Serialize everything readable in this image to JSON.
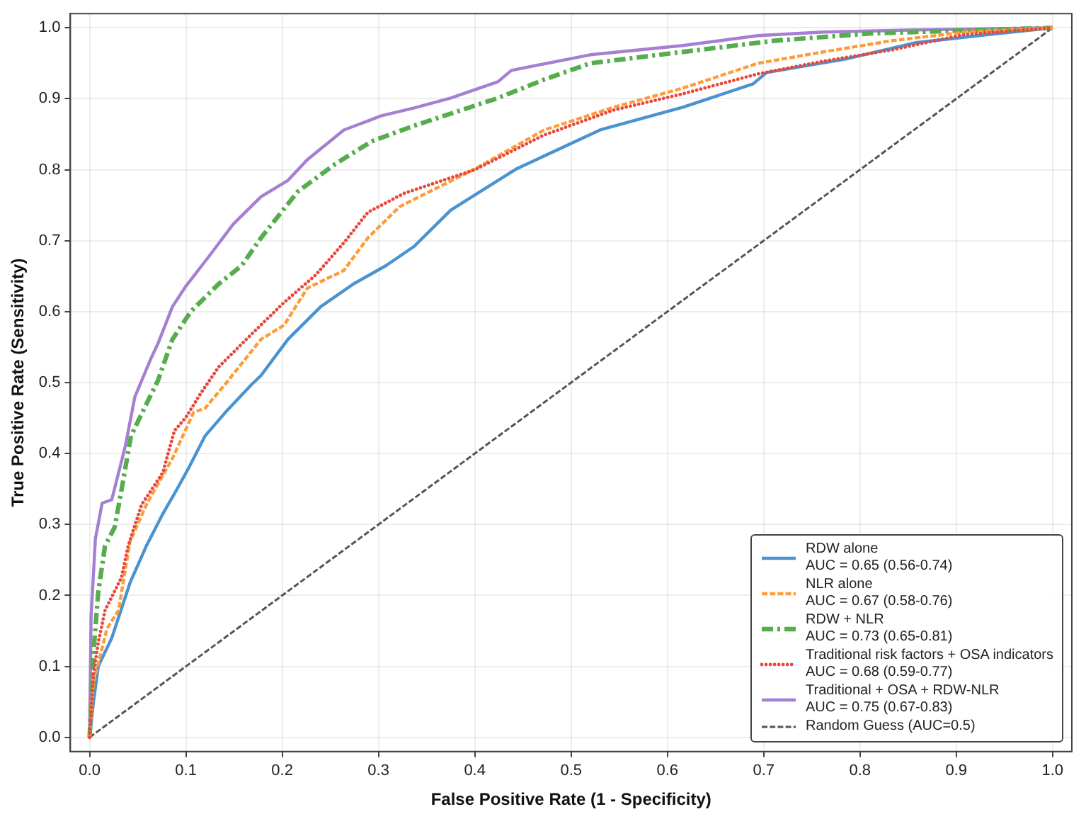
{
  "chart_data": {
    "type": "line",
    "xlabel": "False Positive Rate (1 - Specificity)",
    "ylabel": "True Positive Rate (Sensitivity)",
    "xlim": [
      -0.02,
      1.02
    ],
    "ylim": [
      -0.02,
      1.02
    ],
    "xticks": [
      {
        "value": 0,
        "label": "0.0"
      },
      {
        "value": 0.1,
        "label": "0.1"
      },
      {
        "value": 0.2,
        "label": "0.2"
      },
      {
        "value": 0.3,
        "label": "0.3"
      },
      {
        "value": 0.4,
        "label": "0.4"
      },
      {
        "value": 0.5,
        "label": "0.5"
      },
      {
        "value": 0.6,
        "label": "0.6"
      },
      {
        "value": 0.7,
        "label": "0.7"
      },
      {
        "value": 0.8,
        "label": "0.8"
      },
      {
        "value": 0.9,
        "label": "0.9"
      },
      {
        "value": 1,
        "label": "1.0"
      }
    ],
    "yticks": [
      {
        "value": 0,
        "label": "0.0"
      },
      {
        "value": 0.1,
        "label": "0.1"
      },
      {
        "value": 0.2,
        "label": "0.2"
      },
      {
        "value": 0.3,
        "label": "0.3"
      },
      {
        "value": 0.4,
        "label": "0.4"
      },
      {
        "value": 0.5,
        "label": "0.5"
      },
      {
        "value": 0.6,
        "label": "0.6"
      },
      {
        "value": 0.7,
        "label": "0.7"
      },
      {
        "value": 0.8,
        "label": "0.8"
      },
      {
        "value": 0.9,
        "label": "0.9"
      },
      {
        "value": 1,
        "label": "1.0"
      }
    ],
    "grid": true,
    "legend": "bottom right",
    "marker": "none",
    "series": [
      {
        "name": "RDW alone\nAUC = 0.65 (0.56-0.74)",
        "color": "#4a93d0",
        "line_style": "solid",
        "x": [
          0,
          0.004,
          0.009,
          0.023,
          0.042,
          0.059,
          0.076,
          0.09,
          0.103,
          0.12,
          0.141,
          0.168,
          0.178,
          0.206,
          0.24,
          0.274,
          0.308,
          0.337,
          0.375,
          0.443,
          0.53,
          0.616,
          0.689,
          0.703,
          0.785,
          0.858,
          0.93,
          1
        ],
        "values": [
          0,
          0.05,
          0.1,
          0.14,
          0.218,
          0.27,
          0.315,
          0.348,
          0.38,
          0.425,
          0.458,
          0.497,
          0.51,
          0.561,
          0.607,
          0.639,
          0.665,
          0.692,
          0.743,
          0.801,
          0.856,
          0.888,
          0.921,
          0.937,
          0.956,
          0.979,
          0.99,
          1
        ]
      },
      {
        "name": "NLR alone\nAUC = 0.67 (0.58-0.76)",
        "color": "#ff9c3a",
        "line_style": "dashed",
        "x": [
          0,
          0.004,
          0.018,
          0.03,
          0.042,
          0.059,
          0.086,
          0.108,
          0.12,
          0.144,
          0.178,
          0.202,
          0.226,
          0.264,
          0.289,
          0.322,
          0.4,
          0.472,
          0.544,
          0.616,
          0.694,
          0.762,
          0.834,
          0.91,
          1
        ],
        "values": [
          0,
          0.077,
          0.153,
          0.179,
          0.276,
          0.328,
          0.393,
          0.458,
          0.464,
          0.503,
          0.561,
          0.581,
          0.633,
          0.658,
          0.704,
          0.748,
          0.801,
          0.856,
          0.888,
          0.915,
          0.95,
          0.966,
          0.982,
          0.994,
          1
        ]
      },
      {
        "name": "RDW + NLR\nAUC = 0.73 (0.65-0.81)",
        "color": "#55ad4c",
        "line_style": "dashdot",
        "x": [
          0,
          0.004,
          0.009,
          0.016,
          0.026,
          0.033,
          0.043,
          0.059,
          0.071,
          0.086,
          0.105,
          0.134,
          0.158,
          0.178,
          0.216,
          0.255,
          0.293,
          0.337,
          0.424,
          0.472,
          0.52,
          0.616,
          0.713,
          0.81,
          1
        ],
        "values": [
          0,
          0.12,
          0.205,
          0.27,
          0.296,
          0.348,
          0.425,
          0.47,
          0.503,
          0.561,
          0.6,
          0.639,
          0.665,
          0.704,
          0.769,
          0.808,
          0.84,
          0.862,
          0.901,
          0.927,
          0.95,
          0.966,
          0.982,
          0.992,
          1
        ]
      },
      {
        "name": "Traditional risk factors + OSA indicators\nAUC = 0.68 (0.59-0.77)",
        "color": "#e8483c",
        "line_style": "dotted",
        "x": [
          0,
          0.004,
          0.009,
          0.016,
          0.033,
          0.04,
          0.054,
          0.076,
          0.088,
          0.1,
          0.115,
          0.134,
          0.168,
          0.202,
          0.235,
          0.264,
          0.289,
          0.327,
          0.4,
          0.472,
          0.544,
          0.616,
          0.694,
          0.762,
          0.834,
          0.906,
          1
        ],
        "values": [
          0,
          0.089,
          0.134,
          0.179,
          0.225,
          0.27,
          0.328,
          0.373,
          0.432,
          0.451,
          0.484,
          0.522,
          0.568,
          0.613,
          0.652,
          0.697,
          0.74,
          0.767,
          0.8,
          0.849,
          0.884,
          0.907,
          0.935,
          0.953,
          0.969,
          0.99,
          1
        ]
      },
      {
        "name": "Traditional + OSA + RDW-NLR\nAUC = 0.75 (0.67-0.83)",
        "color": "#a57fd2",
        "line_style": "solid",
        "x": [
          0,
          0.0015,
          0.006,
          0.013,
          0.023,
          0.037,
          0.047,
          0.064,
          0.071,
          0.086,
          0.1,
          0.124,
          0.149,
          0.178,
          0.206,
          0.226,
          0.264,
          0.303,
          0.337,
          0.375,
          0.424,
          0.438,
          0.52,
          0.616,
          0.694,
          0.762,
          0.858,
          1
        ],
        "values": [
          0,
          0.17,
          0.28,
          0.33,
          0.335,
          0.41,
          0.48,
          0.535,
          0.555,
          0.607,
          0.636,
          0.678,
          0.723,
          0.762,
          0.785,
          0.814,
          0.856,
          0.876,
          0.887,
          0.901,
          0.924,
          0.94,
          0.962,
          0.975,
          0.989,
          0.994,
          0.997,
          1
        ]
      },
      {
        "name": "Random Guess (AUC=0.5)",
        "color": "#555555",
        "line_style": "dashed",
        "x": [
          0,
          1
        ],
        "values": [
          0,
          1
        ]
      }
    ]
  }
}
